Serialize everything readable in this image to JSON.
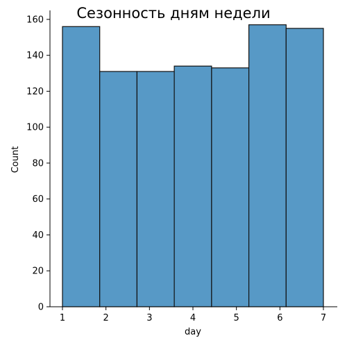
{
  "chart_data": {
    "type": "bar",
    "title": "Сезонность дням недели",
    "xlabel": "day",
    "ylabel": "Count",
    "bin_edges": [
      1,
      1.857,
      2.714,
      3.571,
      4.429,
      5.286,
      6.143,
      7
    ],
    "values": [
      156,
      131,
      131,
      134,
      133,
      157,
      155
    ],
    "xlim": [
      1,
      7
    ],
    "ylim": [
      0,
      165
    ],
    "xticks": [
      1,
      2,
      3,
      4,
      5,
      6,
      7
    ],
    "yticks": [
      0,
      20,
      40,
      60,
      80,
      100,
      120,
      140,
      160
    ],
    "grid": false,
    "bar_color": "#5799c6",
    "edge_color": "#111111"
  }
}
